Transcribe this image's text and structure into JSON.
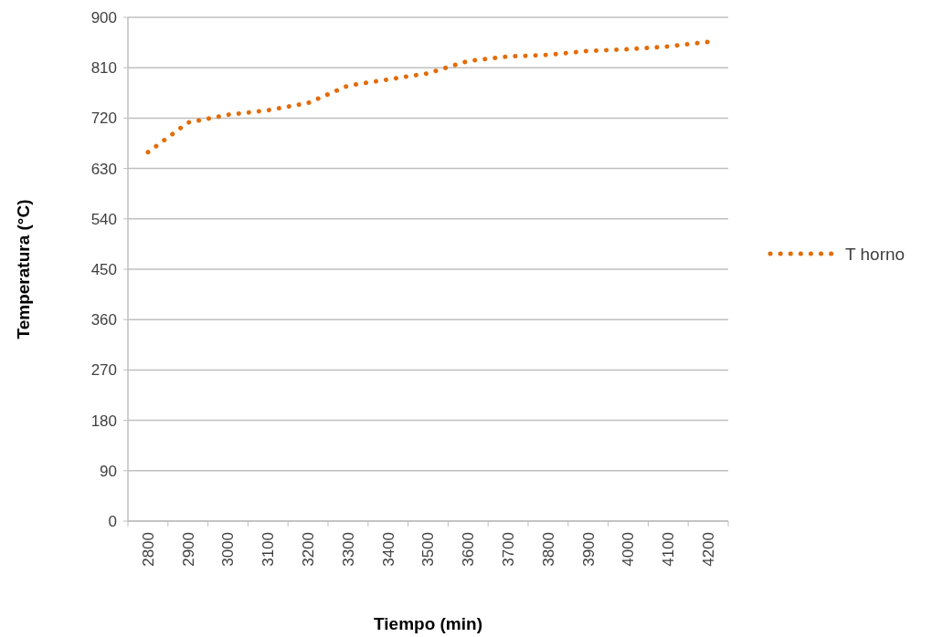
{
  "chart_data": {
    "type": "line",
    "xlabel": "Tiempo (min)",
    "ylabel": "Temperatura (°C)",
    "categories": [
      "2800",
      "2900",
      "3000",
      "3100",
      "3200",
      "3300",
      "3400",
      "3500",
      "3600",
      "3700",
      "3800",
      "3900",
      "4000",
      "4100",
      "4200"
    ],
    "series": [
      {
        "name": "T horno",
        "color": "#e36c09",
        "values": [
          659,
          712,
          726,
          734,
          747,
          778,
          789,
          800,
          822,
          830,
          833,
          840,
          843,
          848,
          856
        ]
      }
    ],
    "ylim": [
      0,
      900
    ],
    "yticks": [
      0,
      90,
      180,
      270,
      360,
      450,
      540,
      630,
      720,
      810,
      900
    ],
    "grid": "y",
    "legend": "right",
    "line_style": "dotted",
    "marker": "none"
  }
}
